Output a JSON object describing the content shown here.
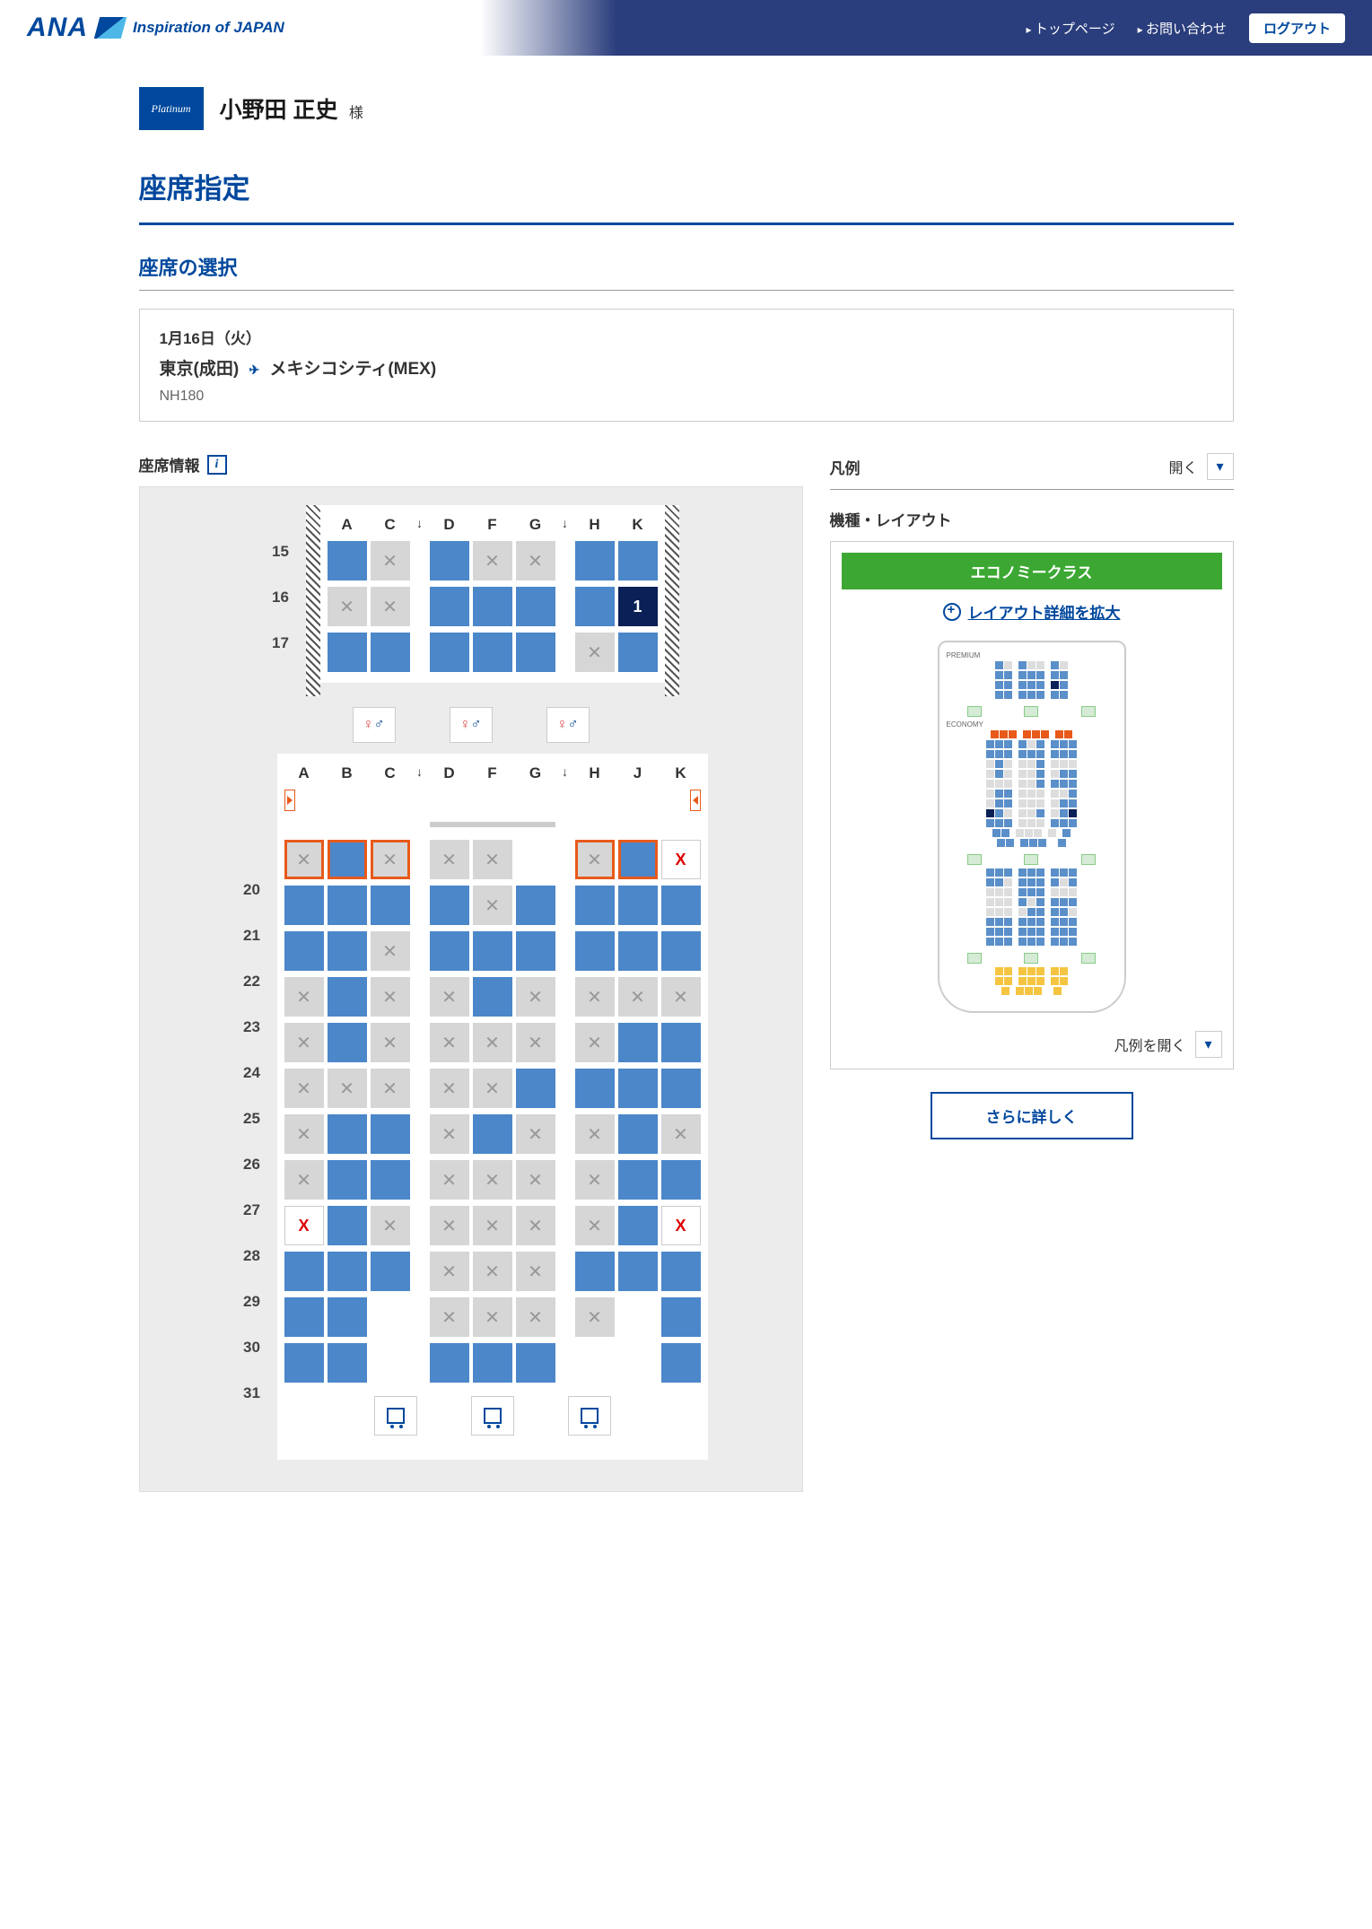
{
  "header": {
    "brand": "ANA",
    "tagline": "Inspiration of JAPAN",
    "topPage": "トップページ",
    "contact": "お問い合わせ",
    "logout": "ログアウト"
  },
  "user": {
    "statusBadge": "Platinum",
    "name": "小野田 正史",
    "honorific": "様"
  },
  "pageTitle": "座席指定",
  "seatSelection": {
    "title": "座席の選択",
    "date": "1月16日（火）",
    "origin": "東京(成田)",
    "destination": "メキシコシティ(MEX)",
    "flightNumber": "NH180"
  },
  "seatInfo": {
    "label": "座席情報",
    "frontCols": [
      "A",
      "C",
      "↓",
      "D",
      "F",
      "G",
      "↓",
      "H",
      "K"
    ],
    "frontRows": [
      {
        "num": "15",
        "seats": [
          "avail",
          "occ",
          "",
          "avail",
          "occ",
          "occ",
          "",
          "avail",
          "avail"
        ]
      },
      {
        "num": "16",
        "seats": [
          "occ",
          "occ",
          "",
          "avail",
          "avail",
          "avail",
          "",
          "avail",
          "sel:1"
        ]
      },
      {
        "num": "17",
        "seats": [
          "avail",
          "avail",
          "",
          "avail",
          "avail",
          "avail",
          "",
          "occ",
          "avail"
        ]
      }
    ],
    "rearCols": [
      "A",
      "B",
      "C",
      "↓",
      "D",
      "F",
      "G",
      "↓",
      "H",
      "J",
      "K"
    ],
    "rearRows": [
      {
        "num": "20",
        "seats": [
          "occ exit",
          "avail exit",
          "occ exit",
          "",
          "occ",
          "occ",
          "empty",
          "",
          "occ exit",
          "avail exit",
          "blk:X"
        ],
        "exitRow": true
      },
      {
        "num": "21",
        "seats": [
          "avail",
          "avail",
          "avail",
          "",
          "avail",
          "occ",
          "avail",
          "",
          "avail",
          "avail",
          "avail"
        ]
      },
      {
        "num": "22",
        "seats": [
          "avail",
          "avail",
          "occ",
          "",
          "avail",
          "avail",
          "avail",
          "",
          "avail",
          "avail",
          "avail"
        ]
      },
      {
        "num": "23",
        "seats": [
          "occ",
          "avail",
          "occ",
          "",
          "occ",
          "avail",
          "occ",
          "",
          "occ",
          "occ",
          "occ"
        ]
      },
      {
        "num": "24",
        "seats": [
          "occ",
          "avail",
          "occ",
          "",
          "occ",
          "occ",
          "occ",
          "",
          "occ",
          "avail",
          "avail"
        ]
      },
      {
        "num": "25",
        "seats": [
          "occ",
          "occ",
          "occ",
          "",
          "occ",
          "occ",
          "avail",
          "",
          "avail",
          "avail",
          "avail"
        ]
      },
      {
        "num": "26",
        "seats": [
          "occ",
          "avail",
          "avail",
          "",
          "occ",
          "avail",
          "occ",
          "",
          "occ",
          "avail",
          "occ"
        ]
      },
      {
        "num": "27",
        "seats": [
          "occ",
          "avail",
          "avail",
          "",
          "occ",
          "occ",
          "occ",
          "",
          "occ",
          "avail",
          "avail"
        ]
      },
      {
        "num": "28",
        "seats": [
          "blk:X",
          "avail",
          "occ",
          "",
          "occ",
          "occ",
          "occ",
          "",
          "occ",
          "avail",
          "blk:X"
        ]
      },
      {
        "num": "29",
        "seats": [
          "avail",
          "avail",
          "avail",
          "",
          "occ",
          "occ",
          "occ",
          "",
          "avail",
          "avail",
          "avail"
        ]
      },
      {
        "num": "30",
        "seats": [
          "avail",
          "avail",
          "empty",
          "",
          "occ",
          "occ",
          "occ",
          "",
          "occ",
          "empty",
          "avail"
        ]
      },
      {
        "num": "31",
        "seats": [
          "avail",
          "avail",
          "empty",
          "",
          "avail",
          "avail",
          "avail",
          "",
          "empty",
          "empty",
          "avail"
        ]
      }
    ]
  },
  "legend": {
    "title": "凡例",
    "expand": "開く",
    "layoutTitle": "機種・レイアウト",
    "className": "エコノミークラス",
    "zoomText": "レイアウト詳細を拡大",
    "openLegend": "凡例を開く",
    "moreDetails": "さらに詳しく"
  },
  "colors": {
    "brand": "#00489d",
    "seatAvail": "#4b87c9",
    "seatOcc": "#d6d6d6",
    "seatSelected": "#0a2057",
    "exitBorder": "#e85a1a",
    "classBanner": "#3ca833"
  }
}
